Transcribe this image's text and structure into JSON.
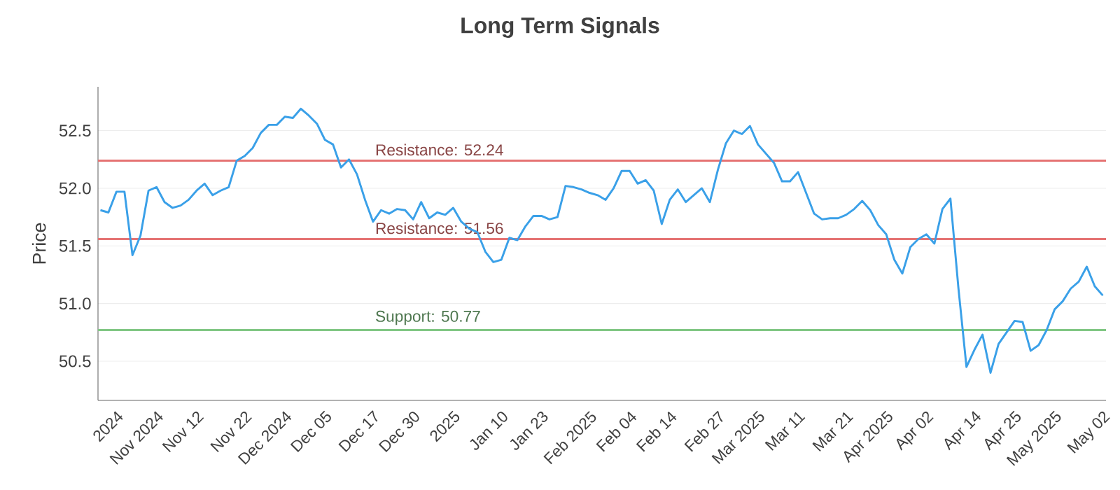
{
  "chart_data": {
    "type": "line",
    "title": "Long Term Signals",
    "ylabel": "Price",
    "categories": [
      null,
      null,
      "2024",
      null,
      null,
      null,
      null,
      "Nov 2024",
      null,
      null,
      null,
      null,
      "Nov 12",
      null,
      null,
      null,
      null,
      null,
      "Nov 22",
      null,
      null,
      null,
      null,
      "Dec 2024",
      null,
      null,
      null,
      null,
      "Dec 05",
      null,
      null,
      null,
      null,
      null,
      "Dec 17",
      null,
      null,
      null,
      null,
      "Dec 30",
      null,
      null,
      null,
      null,
      "2025",
      null,
      null,
      null,
      null,
      null,
      "Jan 10",
      null,
      null,
      null,
      null,
      "Jan 23",
      null,
      null,
      null,
      null,
      null,
      "Feb 2025",
      null,
      null,
      null,
      null,
      "Feb 04",
      null,
      null,
      null,
      null,
      "Feb 14",
      null,
      null,
      null,
      null,
      null,
      "Feb 27",
      null,
      null,
      null,
      null,
      "Mar 2025",
      null,
      null,
      null,
      null,
      "Mar 11",
      null,
      null,
      null,
      null,
      null,
      "Mar 21",
      null,
      null,
      null,
      null,
      "Apr 2025",
      null,
      null,
      null,
      null,
      "Apr 02",
      null,
      null,
      null,
      null,
      null,
      "Apr 14",
      null,
      null,
      null,
      null,
      "Apr 25",
      null,
      null,
      null,
      null,
      "May 2025",
      null,
      null,
      null,
      null,
      null,
      "May 02"
    ],
    "series": [
      {
        "color": "#3aa0e8",
        "values": [
          51.81,
          51.79,
          51.97,
          51.97,
          51.42,
          51.59,
          51.98,
          52.01,
          51.88,
          51.83,
          51.85,
          51.9,
          51.98,
          52.04,
          51.94,
          51.98,
          52.01,
          52.24,
          52.28,
          52.35,
          52.48,
          52.55,
          52.55,
          52.62,
          52.61,
          52.69,
          52.63,
          52.56,
          52.42,
          52.38,
          52.18,
          52.25,
          52.12,
          51.9,
          51.71,
          51.81,
          51.78,
          51.82,
          51.81,
          51.73,
          51.88,
          51.74,
          51.79,
          51.77,
          51.83,
          51.71,
          51.65,
          51.62,
          51.45,
          51.36,
          51.38,
          51.57,
          51.55,
          51.67,
          51.76,
          51.76,
          51.73,
          51.75,
          52.02,
          52.01,
          51.99,
          51.96,
          51.94,
          51.9,
          52.0,
          52.15,
          52.15,
          52.04,
          52.07,
          51.98,
          51.69,
          51.9,
          51.99,
          51.88,
          51.94,
          52.0,
          51.88,
          52.16,
          52.39,
          52.5,
          52.47,
          52.54,
          52.38,
          52.3,
          52.22,
          52.06,
          52.06,
          52.14,
          51.96,
          51.78,
          51.73,
          51.74,
          51.74,
          51.77,
          51.82,
          51.89,
          51.81,
          51.68,
          51.6,
          51.38,
          51.26,
          51.49,
          51.56,
          51.6,
          51.52,
          51.82,
          51.91,
          51.13,
          50.45,
          50.6,
          50.73,
          50.4,
          50.65,
          50.75,
          50.85,
          50.84,
          50.59,
          50.64,
          50.77,
          50.95,
          51.02,
          51.13,
          51.19,
          51.32,
          51.15,
          51.07
        ]
      }
    ],
    "ylim": [
      50.16,
      52.88
    ],
    "yticks": [
      {
        "value": 50.5,
        "label": "50.5"
      },
      {
        "value": 51.0,
        "label": "51.0"
      },
      {
        "value": 51.5,
        "label": "51.5"
      },
      {
        "value": 52.0,
        "label": "52.0"
      },
      {
        "value": 52.5,
        "label": "52.5"
      }
    ],
    "grid": "y",
    "ref_lines": [
      {
        "axis": "y",
        "value": 52.24,
        "label": "Resistance: 52.24",
        "color": "#e57373"
      },
      {
        "axis": "y",
        "value": 51.56,
        "label": "Resistance: 51.56",
        "color": "#e57373"
      },
      {
        "axis": "y",
        "value": 50.77,
        "label": "Support: 50.77",
        "color": "#81c784"
      }
    ]
  }
}
